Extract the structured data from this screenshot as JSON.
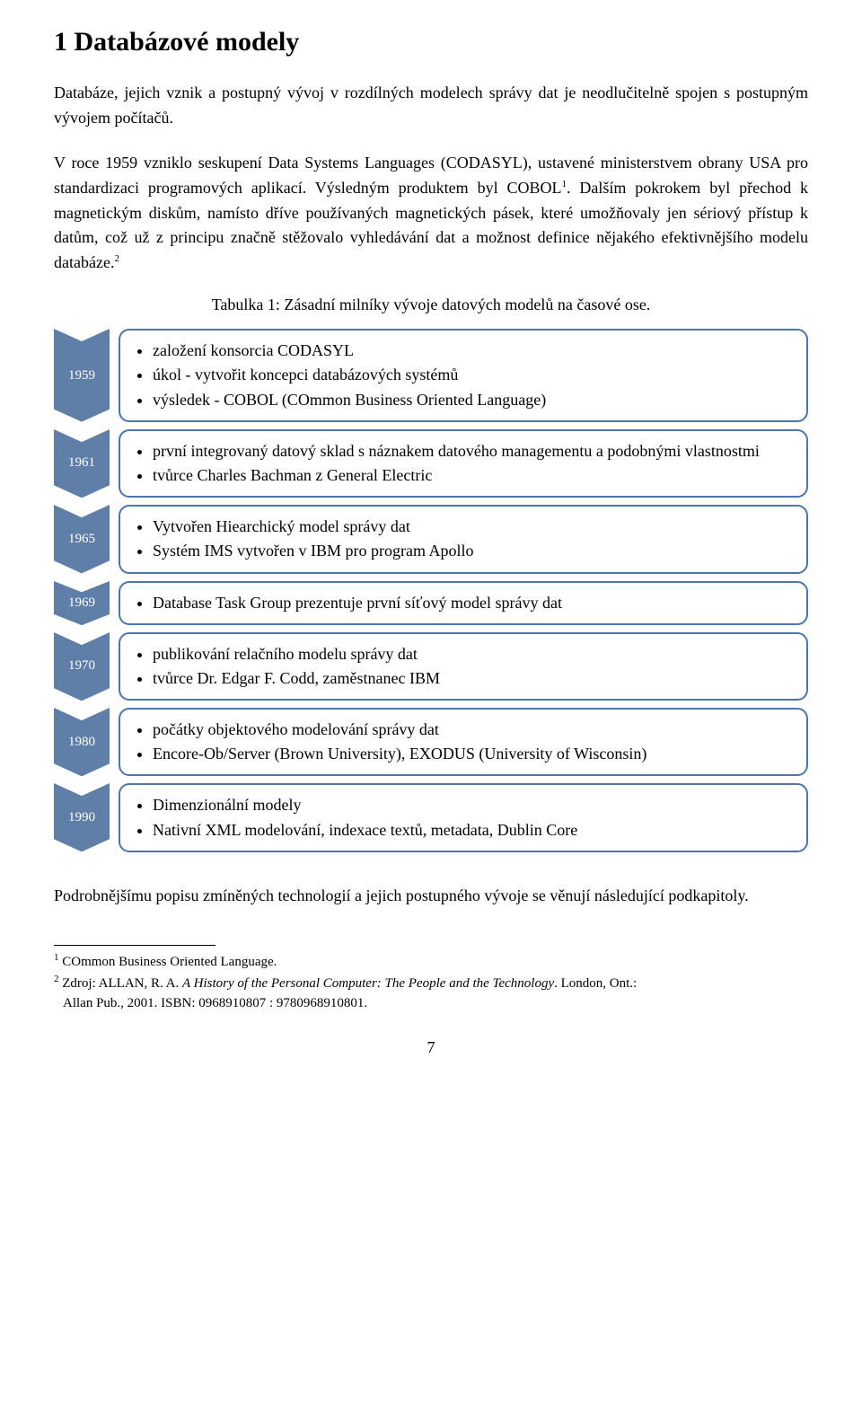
{
  "colors": {
    "badge_fill": "#5f7ea8",
    "box_border": "#4a75ad",
    "text": "#000000",
    "background": "#ffffff"
  },
  "title": "1 Databázové modely",
  "paragraphs": {
    "p1": "Databáze, jejich vznik a postupný vývoj v rozdílných modelech správy dat je neodlučitelně spojen s postupným vývojem počítačů.",
    "p2_part1": "V roce 1959 vzniklo seskupení Data Systems Languages (CODASYL), ustavené ministerstvem obrany USA pro standardizaci programových aplikací. Výsledným produktem byl COBOL",
    "p2_sup1": "1",
    "p2_part2": ". Dalším pokrokem byl přechod k magnetickým diskům, namísto dříve používaných magnetických pásek, které umožňovaly jen sériový přístup k datům, což už z principu značně stěžovalo vyhledávání dat a možnost definice nějakého efektivnějšího modelu databáze.",
    "p2_sup2": "2",
    "closing": "Podrobnějšímu popisu zmíněných technologií a jejich postupného vývoje se věnují následující podkapitoly."
  },
  "table_caption": "Tabulka 1: Zásadní milníky vývoje datových modelů na časové ose.",
  "timeline": [
    {
      "year": "1959",
      "items": [
        "založení konsorcia  CODASYL",
        "úkol - vytvořit koncepci databázových systémů",
        "výsledek - COBOL (COmmon Business Oriented Language)"
      ]
    },
    {
      "year": "1961",
      "items": [
        "první integrovaný datový sklad s náznakem datového managementu a podobnými vlastnostmi",
        "tvůrce Charles Bachman z General Electric"
      ]
    },
    {
      "year": "1965",
      "items": [
        "Vytvořen Hiearchický model správy dat",
        "Systém IMS vytvořen v IBM pro program Apollo"
      ]
    },
    {
      "year": "1969",
      "items": [
        "Database Task Group prezentuje první síťový model správy dat"
      ]
    },
    {
      "year": "1970",
      "items": [
        "publikování relačního modelu správy dat",
        "tvůrce Dr. Edgar F. Codd, zaměstnanec IBM"
      ]
    },
    {
      "year": "1980",
      "items": [
        "počátky objektového modelování správy dat",
        "Encore-Ob/Server (Brown University), EXODUS (University of Wisconsin)"
      ]
    },
    {
      "year": "1990",
      "items": [
        "Dimenzionální modely",
        "Nativní XML modelování, indexace textů, metadata, Dublin Core"
      ]
    }
  ],
  "footnotes": {
    "f1_sup": "1",
    "f1_text": " COmmon Business Oriented Language.",
    "f2_sup": "2",
    "f2_prefix": " Zdroj: ALLAN, R. A. ",
    "f2_italic": "A History of the Personal Computer: The People and the Technology",
    "f2_suffix": ". London, Ont.:",
    "f2_line2": "Allan Pub., 2001. ISBN: 0968910807 : 9780968910801."
  },
  "page_number": "7"
}
